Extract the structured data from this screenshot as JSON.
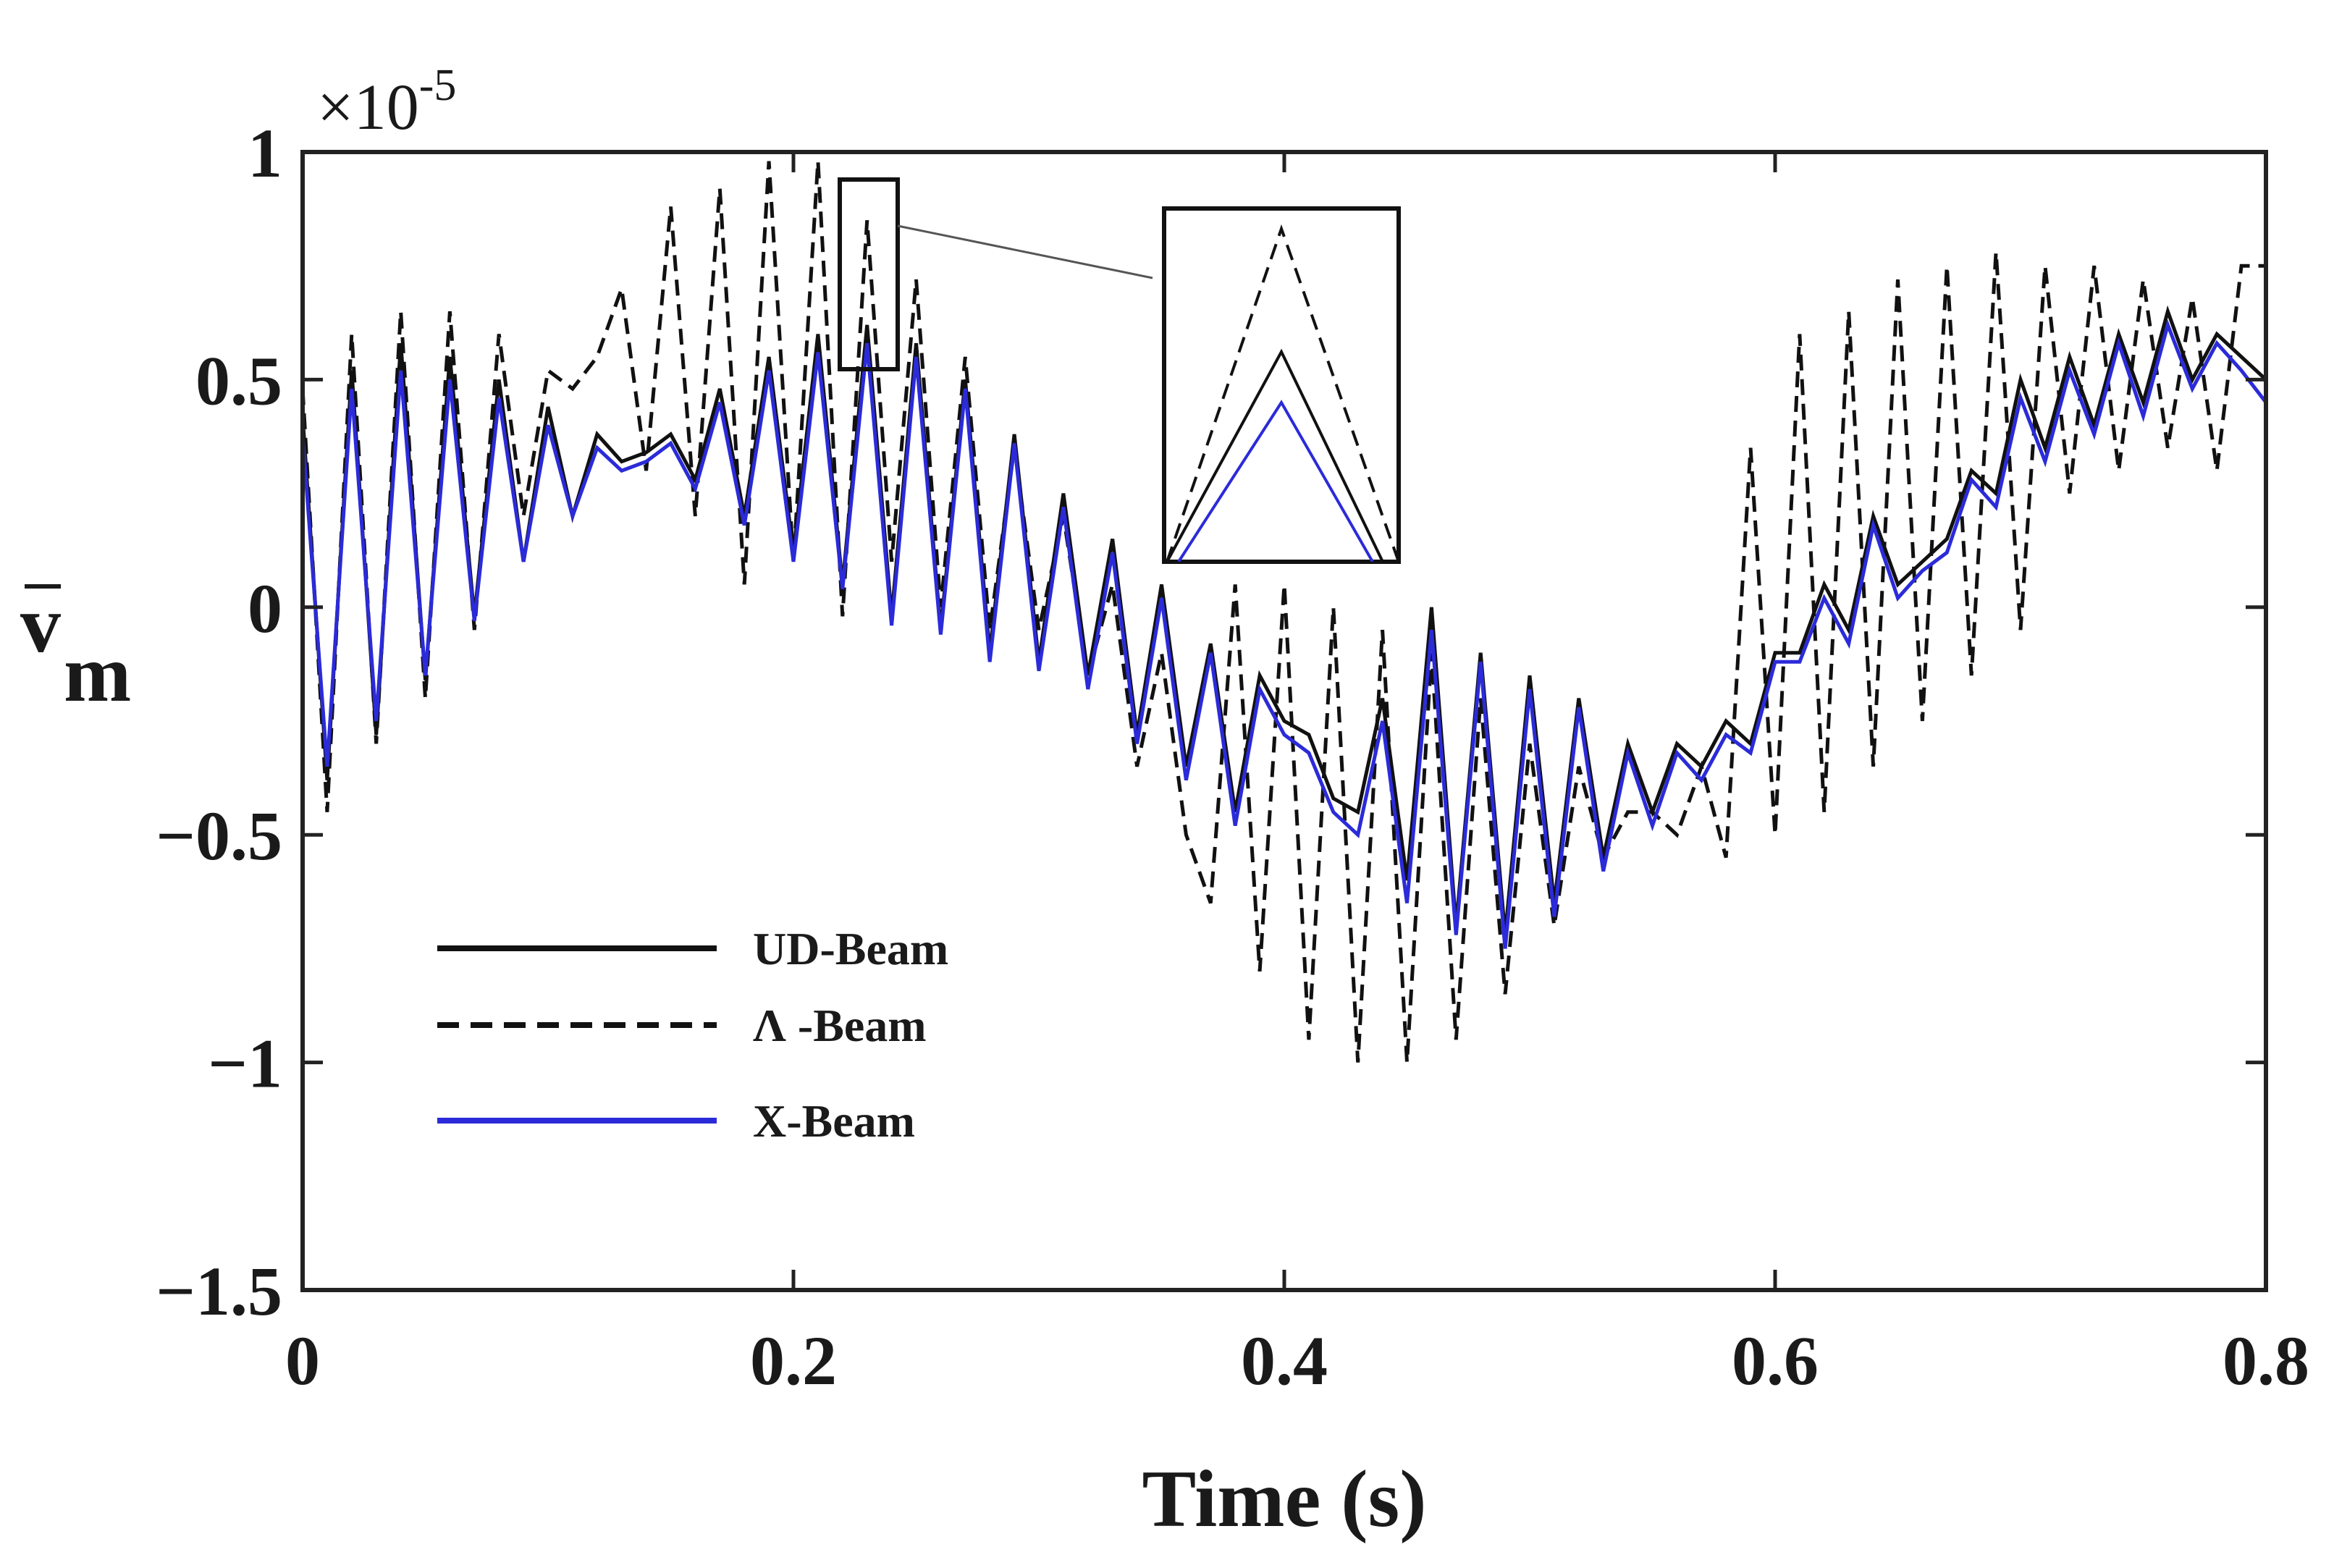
{
  "chart_data": {
    "type": "line",
    "title": "",
    "xlabel": "Time (s)",
    "ylabel_main": "v",
    "ylabel_sub": "m",
    "y_multiplier_base": "×10",
    "y_multiplier_exp": "-5",
    "xlim": [
      0,
      0.8
    ],
    "ylim": [
      -1.5,
      1.0
    ],
    "x_ticks": [
      0,
      0.2,
      0.4,
      0.6,
      0.8
    ],
    "x_tick_labels": [
      "0",
      "0.2",
      "0.4",
      "0.6",
      "0.8"
    ],
    "y_ticks": [
      1,
      0.5,
      0,
      -0.5,
      -1,
      -1.5
    ],
    "y_tick_labels": [
      "1",
      "0.5",
      "0",
      "−0.5",
      "−1",
      "−1.5"
    ],
    "grid": false,
    "legend_position": "bottom-left",
    "x": [
      0,
      0.01,
      0.02,
      0.03,
      0.04,
      0.05,
      0.06,
      0.07,
      0.08,
      0.09,
      0.1,
      0.11,
      0.12,
      0.13,
      0.14,
      0.15,
      0.16,
      0.17,
      0.18,
      0.19,
      0.2,
      0.21,
      0.22,
      0.23,
      0.24,
      0.25,
      0.26,
      0.27,
      0.28,
      0.29,
      0.3,
      0.31,
      0.32,
      0.33,
      0.34,
      0.35,
      0.36,
      0.37,
      0.38,
      0.39,
      0.4,
      0.41,
      0.42,
      0.43,
      0.44,
      0.45,
      0.46,
      0.47,
      0.48,
      0.49,
      0.5,
      0.51,
      0.52,
      0.53,
      0.54,
      0.55,
      0.56,
      0.57,
      0.58,
      0.59,
      0.6,
      0.61,
      0.62,
      0.63,
      0.64,
      0.65,
      0.66,
      0.67,
      0.68,
      0.69,
      0.7,
      0.71,
      0.72,
      0.73,
      0.74,
      0.75,
      0.76,
      0.77,
      0.78,
      0.79,
      0.8
    ],
    "series": [
      {
        "name": "UD-Beam",
        "color": "#111111",
        "dash": "solid",
        "values": [
          0.42,
          -0.38,
          0.52,
          -0.28,
          0.58,
          -0.16,
          0.55,
          -0.02,
          0.5,
          0.1,
          0.44,
          0.2,
          0.38,
          0.32,
          0.34,
          0.38,
          0.28,
          0.48,
          0.2,
          0.55,
          0.12,
          0.6,
          0.05,
          0.62,
          -0.02,
          0.58,
          -0.05,
          0.5,
          -0.1,
          0.38,
          -0.12,
          0.25,
          -0.15,
          0.15,
          -0.28,
          0.05,
          -0.35,
          -0.08,
          -0.45,
          -0.15,
          -0.25,
          -0.28,
          -0.42,
          -0.45,
          -0.2,
          -0.6,
          0.0,
          -0.7,
          -0.1,
          -0.72,
          -0.15,
          -0.65,
          -0.2,
          -0.55,
          -0.3,
          -0.45,
          -0.3,
          -0.35,
          -0.25,
          -0.3,
          -0.1,
          -0.1,
          0.05,
          -0.05,
          0.2,
          0.05,
          0.1,
          0.15,
          0.3,
          0.25,
          0.5,
          0.35,
          0.55,
          0.4,
          0.6,
          0.45,
          0.65,
          0.5,
          0.6,
          0.55,
          0.5
        ]
      },
      {
        "name": "Λ -Beam",
        "color": "#111111",
        "dash": "dashed",
        "values": [
          0.48,
          -0.45,
          0.6,
          -0.3,
          0.65,
          -0.2,
          0.65,
          -0.05,
          0.6,
          0.2,
          0.52,
          0.48,
          0.55,
          0.7,
          0.3,
          0.88,
          0.2,
          0.92,
          0.05,
          0.98,
          0.1,
          0.98,
          -0.02,
          0.85,
          0.1,
          0.72,
          0.0,
          0.55,
          -0.05,
          0.35,
          -0.05,
          0.2,
          -0.15,
          0.05,
          -0.35,
          -0.1,
          -0.5,
          -0.65,
          0.05,
          -0.8,
          0.05,
          -0.95,
          0.0,
          -1.0,
          -0.05,
          -1.0,
          -0.1,
          -0.95,
          -0.2,
          -0.85,
          -0.3,
          -0.7,
          -0.35,
          -0.55,
          -0.45,
          -0.45,
          -0.5,
          -0.35,
          -0.55,
          0.35,
          -0.5,
          0.6,
          -0.45,
          0.65,
          -0.35,
          0.72,
          -0.25,
          0.75,
          -0.15,
          0.78,
          -0.05,
          0.75,
          0.25,
          0.75,
          0.3,
          0.72,
          0.35,
          0.68,
          0.3,
          0.75,
          0.75
        ]
      },
      {
        "name": "X-Beam",
        "color": "#2b2bd9",
        "dash": "solid",
        "values": [
          0.38,
          -0.35,
          0.48,
          -0.25,
          0.52,
          -0.15,
          0.5,
          -0.03,
          0.46,
          0.1,
          0.4,
          0.2,
          0.35,
          0.3,
          0.32,
          0.36,
          0.26,
          0.45,
          0.18,
          0.52,
          0.1,
          0.56,
          0.04,
          0.58,
          -0.04,
          0.55,
          -0.06,
          0.48,
          -0.12,
          0.36,
          -0.14,
          0.22,
          -0.18,
          0.12,
          -0.3,
          0.02,
          -0.38,
          -0.1,
          -0.48,
          -0.18,
          -0.28,
          -0.32,
          -0.45,
          -0.5,
          -0.25,
          -0.65,
          -0.05,
          -0.72,
          -0.12,
          -0.75,
          -0.18,
          -0.68,
          -0.22,
          -0.58,
          -0.32,
          -0.48,
          -0.32,
          -0.38,
          -0.28,
          -0.32,
          -0.12,
          -0.12,
          0.02,
          -0.08,
          0.18,
          0.02,
          0.08,
          0.12,
          0.28,
          0.22,
          0.46,
          0.32,
          0.52,
          0.38,
          0.58,
          0.42,
          0.62,
          0.48,
          0.58,
          0.52,
          0.45
        ]
      }
    ]
  }
}
